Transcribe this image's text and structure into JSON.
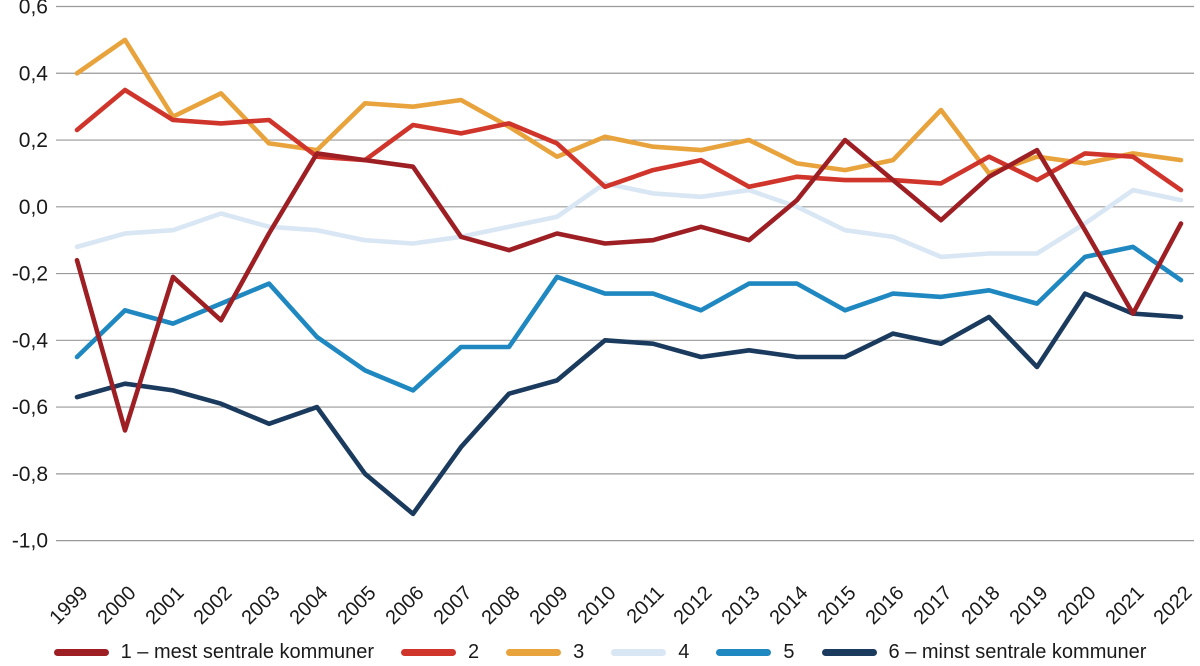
{
  "chart_data": {
    "type": "line",
    "title": "",
    "xlabel": "",
    "ylabel": "",
    "ylim": [
      -1.0,
      0.6
    ],
    "grid": "horizontal",
    "legend_position": "bottom",
    "x": [
      1999,
      2000,
      2001,
      2002,
      2003,
      2004,
      2005,
      2006,
      2007,
      2008,
      2009,
      2010,
      2011,
      2012,
      2013,
      2014,
      2015,
      2016,
      2017,
      2018,
      2019,
      2020,
      2021,
      2022
    ],
    "y_ticks": [
      {
        "v": 0.6,
        "label": "0,6"
      },
      {
        "v": 0.4,
        "label": "0,4"
      },
      {
        "v": 0.2,
        "label": "0,2"
      },
      {
        "v": 0.0,
        "label": "0,0"
      },
      {
        "v": -0.2,
        "label": "-0,2"
      },
      {
        "v": -0.4,
        "label": "-0,4"
      },
      {
        "v": -0.6,
        "label": "-0,6"
      },
      {
        "v": -0.8,
        "label": "-0,8"
      },
      {
        "v": -1.0,
        "label": "-1,0"
      }
    ],
    "series": [
      {
        "name": "1 – mest sentrale kommuner",
        "color": "#9D1F24",
        "values": [
          -0.16,
          -0.67,
          -0.21,
          -0.34,
          -0.08,
          0.16,
          0.14,
          0.12,
          -0.09,
          -0.13,
          -0.08,
          -0.11,
          -0.1,
          -0.06,
          -0.1,
          0.02,
          0.2,
          0.08,
          -0.04,
          0.09,
          0.17,
          -0.07,
          -0.32,
          -0.05
        ]
      },
      {
        "name": "2",
        "color": "#D0352C",
        "values": [
          0.23,
          0.35,
          0.26,
          0.25,
          0.26,
          0.15,
          0.14,
          0.245,
          0.22,
          0.25,
          0.19,
          0.06,
          0.11,
          0.14,
          0.06,
          0.09,
          0.08,
          0.08,
          0.07,
          0.15,
          0.08,
          0.16,
          0.15,
          0.05
        ]
      },
      {
        "name": "3",
        "color": "#E8A33C",
        "values": [
          0.4,
          0.5,
          0.27,
          0.34,
          0.19,
          0.17,
          0.31,
          0.3,
          0.32,
          0.24,
          0.15,
          0.21,
          0.18,
          0.17,
          0.2,
          0.13,
          0.11,
          0.14,
          0.29,
          0.1,
          0.15,
          0.13,
          0.16,
          0.14
        ]
      },
      {
        "name": "4",
        "color": "#D9E6F4",
        "values": [
          -0.12,
          -0.08,
          -0.07,
          -0.02,
          -0.06,
          -0.07,
          -0.1,
          -0.11,
          -0.09,
          -0.06,
          -0.03,
          0.07,
          0.04,
          0.03,
          0.05,
          0.0,
          -0.07,
          -0.09,
          -0.15,
          -0.14,
          -0.14,
          -0.05,
          0.05,
          0.02
        ]
      },
      {
        "name": "5",
        "color": "#1F88C0",
        "values": [
          -0.45,
          -0.31,
          -0.35,
          -0.29,
          -0.23,
          -0.39,
          -0.49,
          -0.55,
          -0.42,
          -0.42,
          -0.21,
          -0.26,
          -0.26,
          -0.31,
          -0.23,
          -0.23,
          -0.31,
          -0.26,
          -0.27,
          -0.25,
          -0.29,
          -0.15,
          -0.12,
          -0.22
        ]
      },
      {
        "name": "6 – minst sentrale kommuner",
        "color": "#1A3A5E",
        "values": [
          -0.57,
          -0.53,
          -0.55,
          -0.59,
          -0.65,
          -0.6,
          -0.8,
          -0.92,
          -0.72,
          -0.56,
          -0.52,
          -0.4,
          -0.41,
          -0.45,
          -0.43,
          -0.45,
          -0.45,
          -0.38,
          -0.41,
          -0.33,
          -0.48,
          -0.26,
          -0.32,
          -0.33
        ]
      }
    ],
    "style": {
      "grid_color": "#999999",
      "tick_label_color": "#1a1a1a",
      "background": "#ffffff"
    }
  }
}
